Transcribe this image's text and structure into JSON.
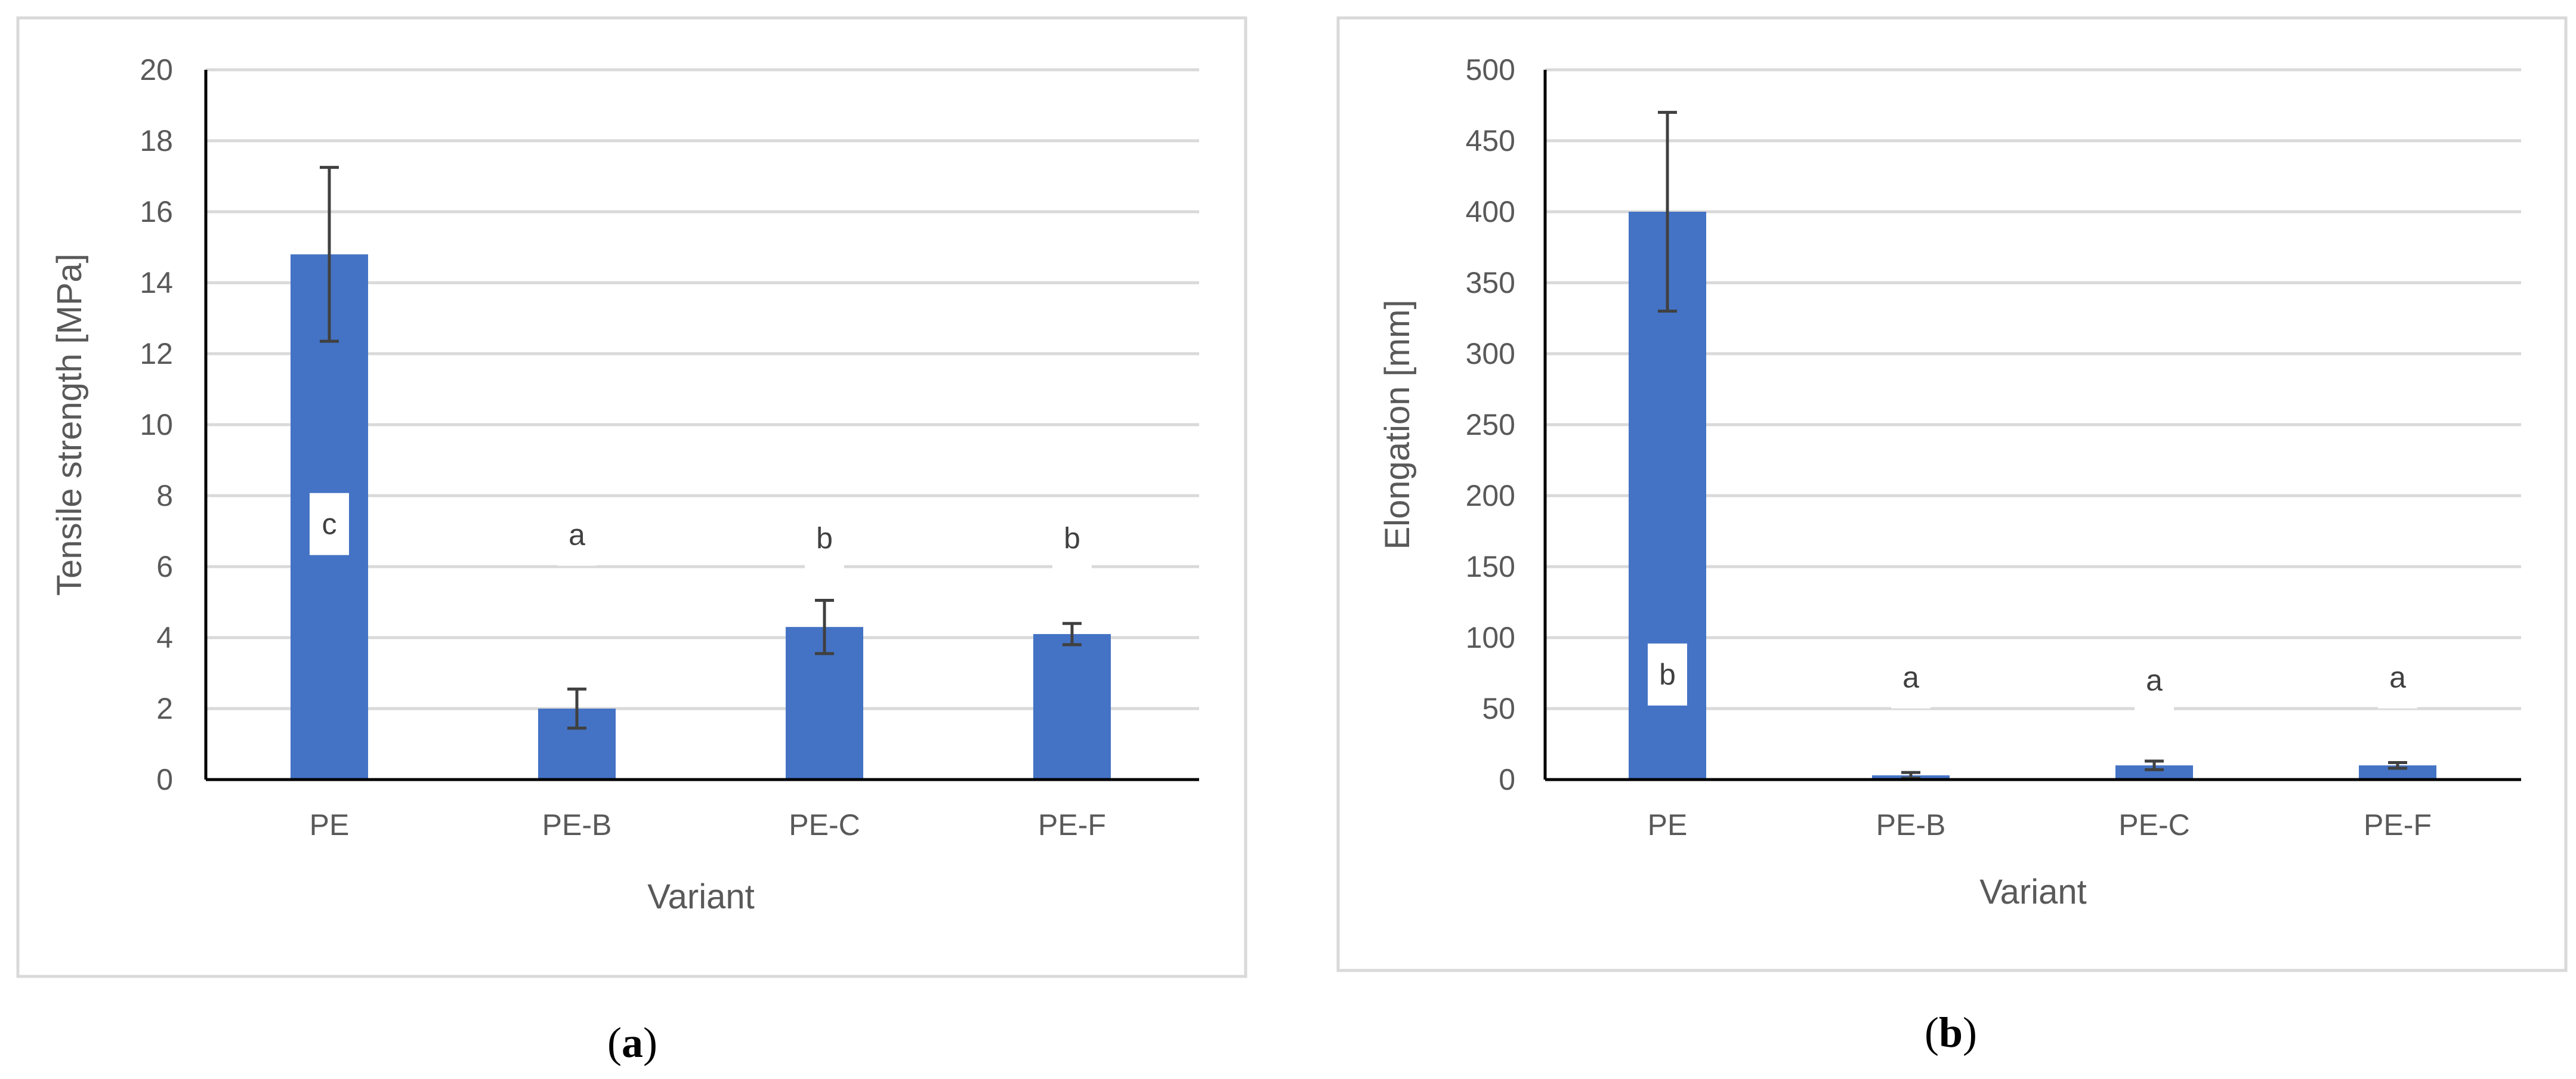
{
  "chart_data": [
    {
      "type": "bar",
      "panel_label": "a",
      "categories": [
        "PE",
        "PE-B",
        "PE-C",
        "PE-F"
      ],
      "values": [
        14.8,
        2.0,
        4.3,
        4.1
      ],
      "error": [
        2.45,
        0.55,
        0.75,
        0.3
      ],
      "significance": [
        "c",
        "a",
        "b",
        "b"
      ],
      "significance_y": [
        7.2,
        6.9,
        6.8,
        6.8
      ],
      "xlabel": "Variant",
      "ylabel": "Tensile strength [MPa]",
      "ylim": [
        0,
        20
      ],
      "yticks": [
        0,
        2,
        4,
        6,
        8,
        10,
        12,
        14,
        16,
        18,
        20
      ],
      "grid": true,
      "color": "#4472C4"
    },
    {
      "type": "bar",
      "panel_label": "b",
      "categories": [
        "PE",
        "PE-B",
        "PE-C",
        "PE-F"
      ],
      "values": [
        400,
        3,
        10,
        10
      ],
      "error": [
        70,
        2,
        3,
        2
      ],
      "significance": [
        "b",
        "a",
        "a",
        "a"
      ],
      "significance_y": [
        74,
        72,
        70,
        72
      ],
      "xlabel": "Variant",
      "ylabel": "Elongation [mm]",
      "ylim": [
        0,
        500
      ],
      "yticks": [
        0,
        50,
        100,
        150,
        200,
        250,
        300,
        350,
        400,
        450,
        500
      ],
      "grid": true,
      "color": "#4472C4"
    }
  ]
}
